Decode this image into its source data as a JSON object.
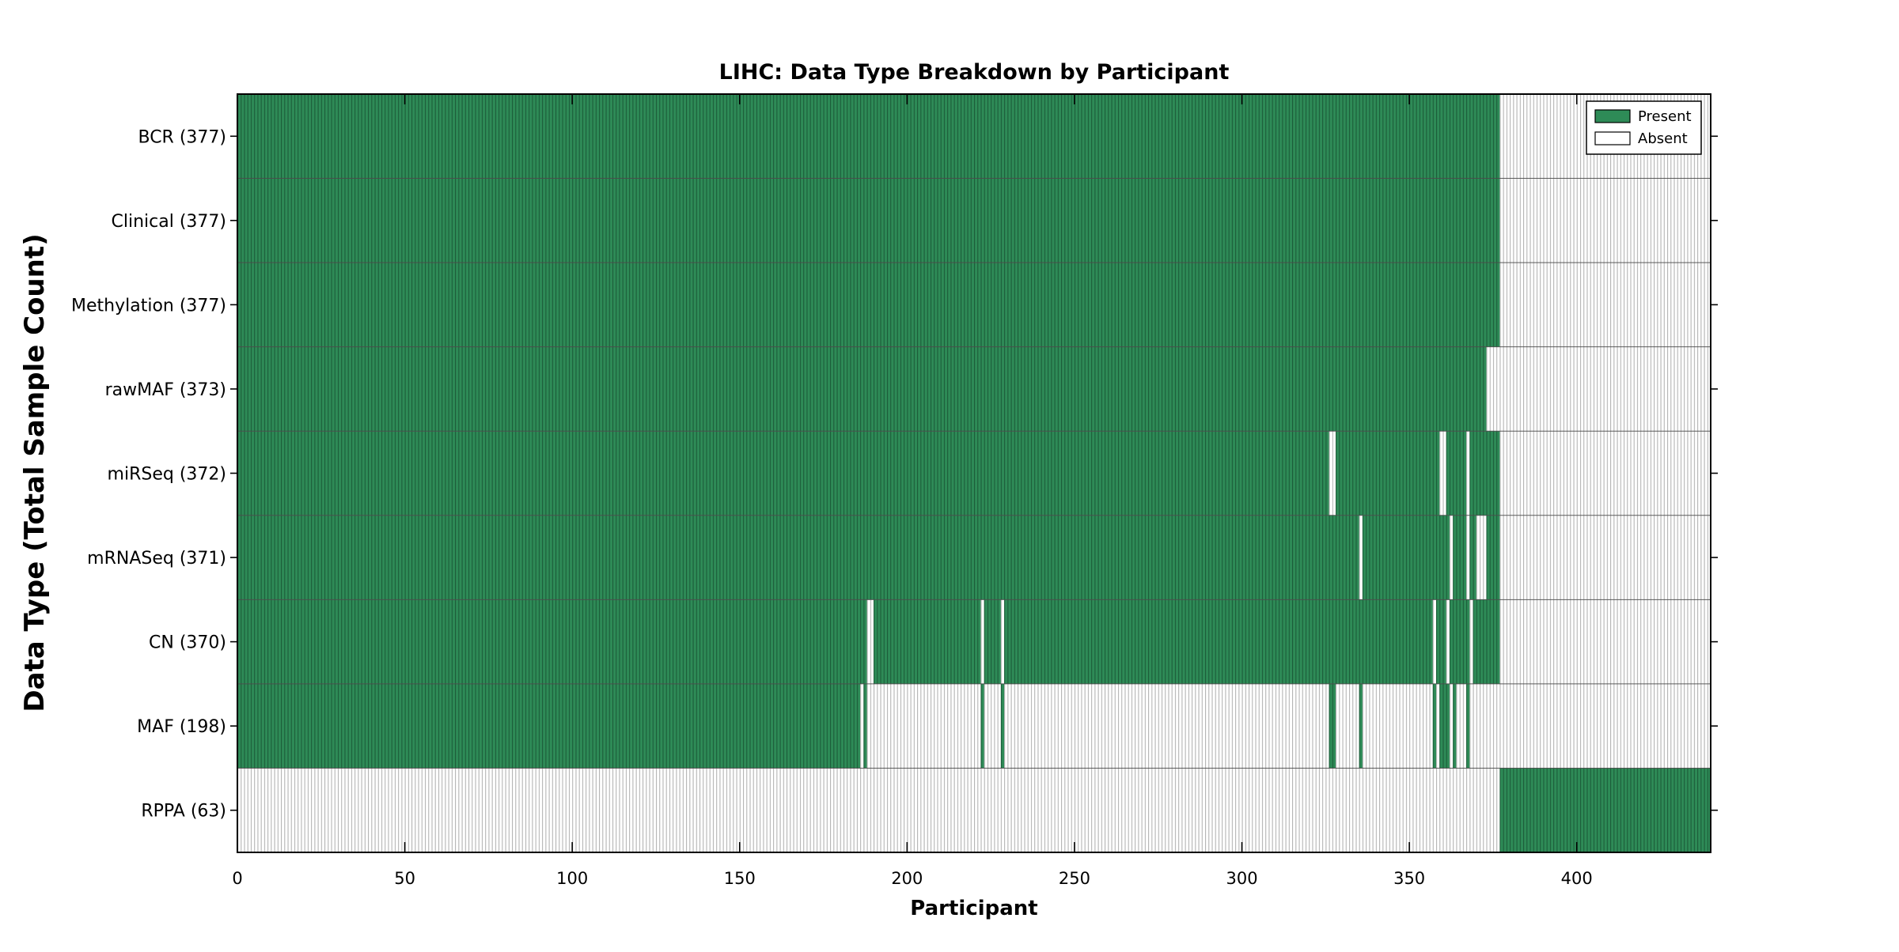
{
  "figure": {
    "background": "#ffffff"
  },
  "chart_data": {
    "type": "heatmap",
    "title": "LIHC: Data Type Breakdown by Participant",
    "xlabel": "Participant",
    "ylabel": "Data Type (Total Sample Count)",
    "x_ticks": [
      0,
      50,
      100,
      150,
      200,
      250,
      300,
      350,
      400
    ],
    "x_range": [
      0,
      440
    ],
    "n_participants": 440,
    "grid": false,
    "legend": {
      "position": "upper right",
      "entries": [
        {
          "label": "Present",
          "color": "#2e8b57"
        },
        {
          "label": "Absent",
          "color": "#ffffff"
        }
      ]
    },
    "colors": {
      "present_fill": "#2e8b57",
      "present_edge": "#1c5c39",
      "absent_fill": "#ffffff",
      "absent_edge": "#b4b4b4",
      "axis": "#000000",
      "row_divider": "#4a4a4a"
    },
    "rows": [
      {
        "label": "BCR (377)",
        "data_type": "BCR",
        "sample_count": 377,
        "present_ranges": [
          [
            0,
            377
          ]
        ]
      },
      {
        "label": "Clinical (377)",
        "data_type": "Clinical",
        "sample_count": 377,
        "present_ranges": [
          [
            0,
            377
          ]
        ]
      },
      {
        "label": "Methylation (377)",
        "data_type": "Methylation",
        "sample_count": 377,
        "present_ranges": [
          [
            0,
            377
          ]
        ]
      },
      {
        "label": "rawMAF (373)",
        "data_type": "rawMAF",
        "sample_count": 373,
        "present_ranges": [
          [
            0,
            373
          ]
        ]
      },
      {
        "label": "miRSeq (372)",
        "data_type": "miRSeq",
        "sample_count": 372,
        "present_ranges": [
          [
            0,
            326
          ],
          [
            328,
            359
          ],
          [
            361,
            367
          ],
          [
            368,
            377
          ]
        ]
      },
      {
        "label": "mRNASeq (371)",
        "data_type": "mRNASeq",
        "sample_count": 371,
        "present_ranges": [
          [
            0,
            335
          ],
          [
            336,
            362
          ],
          [
            363,
            367
          ],
          [
            368,
            370
          ],
          [
            373,
            377
          ]
        ]
      },
      {
        "label": "CN (370)",
        "data_type": "CN",
        "sample_count": 370,
        "present_ranges": [
          [
            0,
            188
          ],
          [
            190,
            222
          ],
          [
            223,
            228
          ],
          [
            229,
            357
          ],
          [
            358,
            361
          ],
          [
            362,
            368
          ],
          [
            369,
            377
          ]
        ]
      },
      {
        "label": "MAF (198)",
        "data_type": "MAF",
        "sample_count": 198,
        "present_ranges": [
          [
            0,
            186
          ],
          [
            187,
            188
          ],
          [
            222,
            223
          ],
          [
            228,
            229
          ],
          [
            326,
            328
          ],
          [
            335,
            336
          ],
          [
            357,
            358
          ],
          [
            359,
            362
          ],
          [
            363,
            364
          ],
          [
            367,
            368
          ]
        ]
      },
      {
        "label": "RPPA (63)",
        "data_type": "RPPA",
        "sample_count": 63,
        "present_ranges": [
          [
            377,
            440
          ]
        ]
      }
    ]
  }
}
